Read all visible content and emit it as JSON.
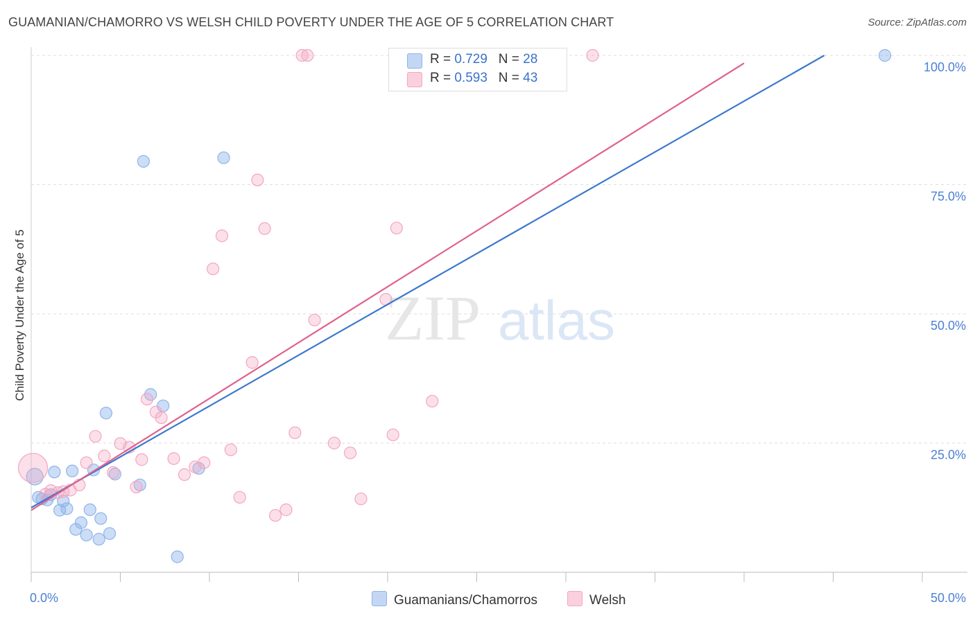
{
  "title": "GUAMANIAN/CHAMORRO VS WELSH CHILD POVERTY UNDER THE AGE OF 5 CORRELATION CHART",
  "source": "Source: ZipAtlas.com",
  "watermark": {
    "zip": "ZIP",
    "atlas": "atlas"
  },
  "legend": {
    "r_label": "R =",
    "n_label": "N =",
    "series": [
      {
        "r": "0.729",
        "n": "28"
      },
      {
        "r": "0.593",
        "n": "43"
      }
    ]
  },
  "chart_data": {
    "type": "scatter",
    "title": "GUAMANIAN/CHAMORRO VS WELSH CHILD POVERTY UNDER THE AGE OF 5 CORRELATION CHART",
    "xlabel": "",
    "ylabel": "Child Poverty Under the Age of 5",
    "xlim": [
      0,
      50
    ],
    "ylim": [
      0,
      100
    ],
    "x_tick_labels": [
      "0.0%",
      "50.0%"
    ],
    "y_tick_labels": [
      "25.0%",
      "50.0%",
      "75.0%",
      "100.0%"
    ],
    "y_ticks": [
      25,
      50,
      75,
      100
    ],
    "colors": {
      "guamanian": "#8fb4ea",
      "welsh": "#f3a6c0",
      "guamanian_line": "#3b78cc",
      "welsh_line": "#e0608c",
      "tick": "#4a7fd4"
    },
    "series": [
      {
        "name": "Guamanians/Chamorros",
        "r": 0.729,
        "n": 28,
        "trend": {
          "x": [
            0,
            44.5
          ],
          "y": [
            12.5,
            100
          ]
        },
        "points": [
          [
            0.2,
            18.5
          ],
          [
            0.4,
            14.5
          ],
          [
            0.6,
            14.2
          ],
          [
            0.9,
            14.0
          ],
          [
            1.3,
            19.4
          ],
          [
            1.6,
            12.0
          ],
          [
            1.8,
            13.8
          ],
          [
            2.0,
            12.3
          ],
          [
            2.3,
            19.6
          ],
          [
            2.5,
            8.3
          ],
          [
            2.8,
            9.6
          ],
          [
            3.1,
            7.2
          ],
          [
            3.3,
            12.1
          ],
          [
            3.5,
            19.8
          ],
          [
            3.8,
            6.4
          ],
          [
            3.9,
            10.4
          ],
          [
            4.2,
            30.8
          ],
          [
            4.4,
            7.5
          ],
          [
            4.7,
            19.0
          ],
          [
            6.1,
            16.9
          ],
          [
            6.3,
            79.5
          ],
          [
            6.7,
            34.4
          ],
          [
            7.4,
            32.2
          ],
          [
            8.2,
            3.0
          ],
          [
            9.4,
            20.1
          ],
          [
            10.8,
            80.2
          ],
          [
            47.9,
            100.0
          ],
          [
            1.1,
            15.0
          ]
        ]
      },
      {
        "name": "Welsh",
        "r": 0.593,
        "n": 43,
        "trend": {
          "x": [
            0,
            40.0
          ],
          "y": [
            12.0,
            98.5
          ]
        },
        "points": [
          [
            0.1,
            20.2
          ],
          [
            0.8,
            15.1
          ],
          [
            1.1,
            15.8
          ],
          [
            1.5,
            15.4
          ],
          [
            1.8,
            15.6
          ],
          [
            2.2,
            15.9
          ],
          [
            2.7,
            16.9
          ],
          [
            3.1,
            21.2
          ],
          [
            3.6,
            26.3
          ],
          [
            4.1,
            22.5
          ],
          [
            4.6,
            19.3
          ],
          [
            5.0,
            24.9
          ],
          [
            5.5,
            24.2
          ],
          [
            5.9,
            16.5
          ],
          [
            6.2,
            21.8
          ],
          [
            6.5,
            33.5
          ],
          [
            7.0,
            31.0
          ],
          [
            7.3,
            29.9
          ],
          [
            8.0,
            22.0
          ],
          [
            8.6,
            18.9
          ],
          [
            9.2,
            20.4
          ],
          [
            9.7,
            21.2
          ],
          [
            10.2,
            58.7
          ],
          [
            10.7,
            65.1
          ],
          [
            11.2,
            23.7
          ],
          [
            11.7,
            14.5
          ],
          [
            12.4,
            40.6
          ],
          [
            12.7,
            75.9
          ],
          [
            13.1,
            66.5
          ],
          [
            13.7,
            11.0
          ],
          [
            14.3,
            12.1
          ],
          [
            14.8,
            27.0
          ],
          [
            15.2,
            100.0
          ],
          [
            15.5,
            100.0
          ],
          [
            15.9,
            48.8
          ],
          [
            17.0,
            25.0
          ],
          [
            17.9,
            23.1
          ],
          [
            18.5,
            14.2
          ],
          [
            19.9,
            52.8
          ],
          [
            20.3,
            26.6
          ],
          [
            20.5,
            66.6
          ],
          [
            22.5,
            33.1
          ],
          [
            31.5,
            100.0
          ]
        ]
      }
    ]
  }
}
